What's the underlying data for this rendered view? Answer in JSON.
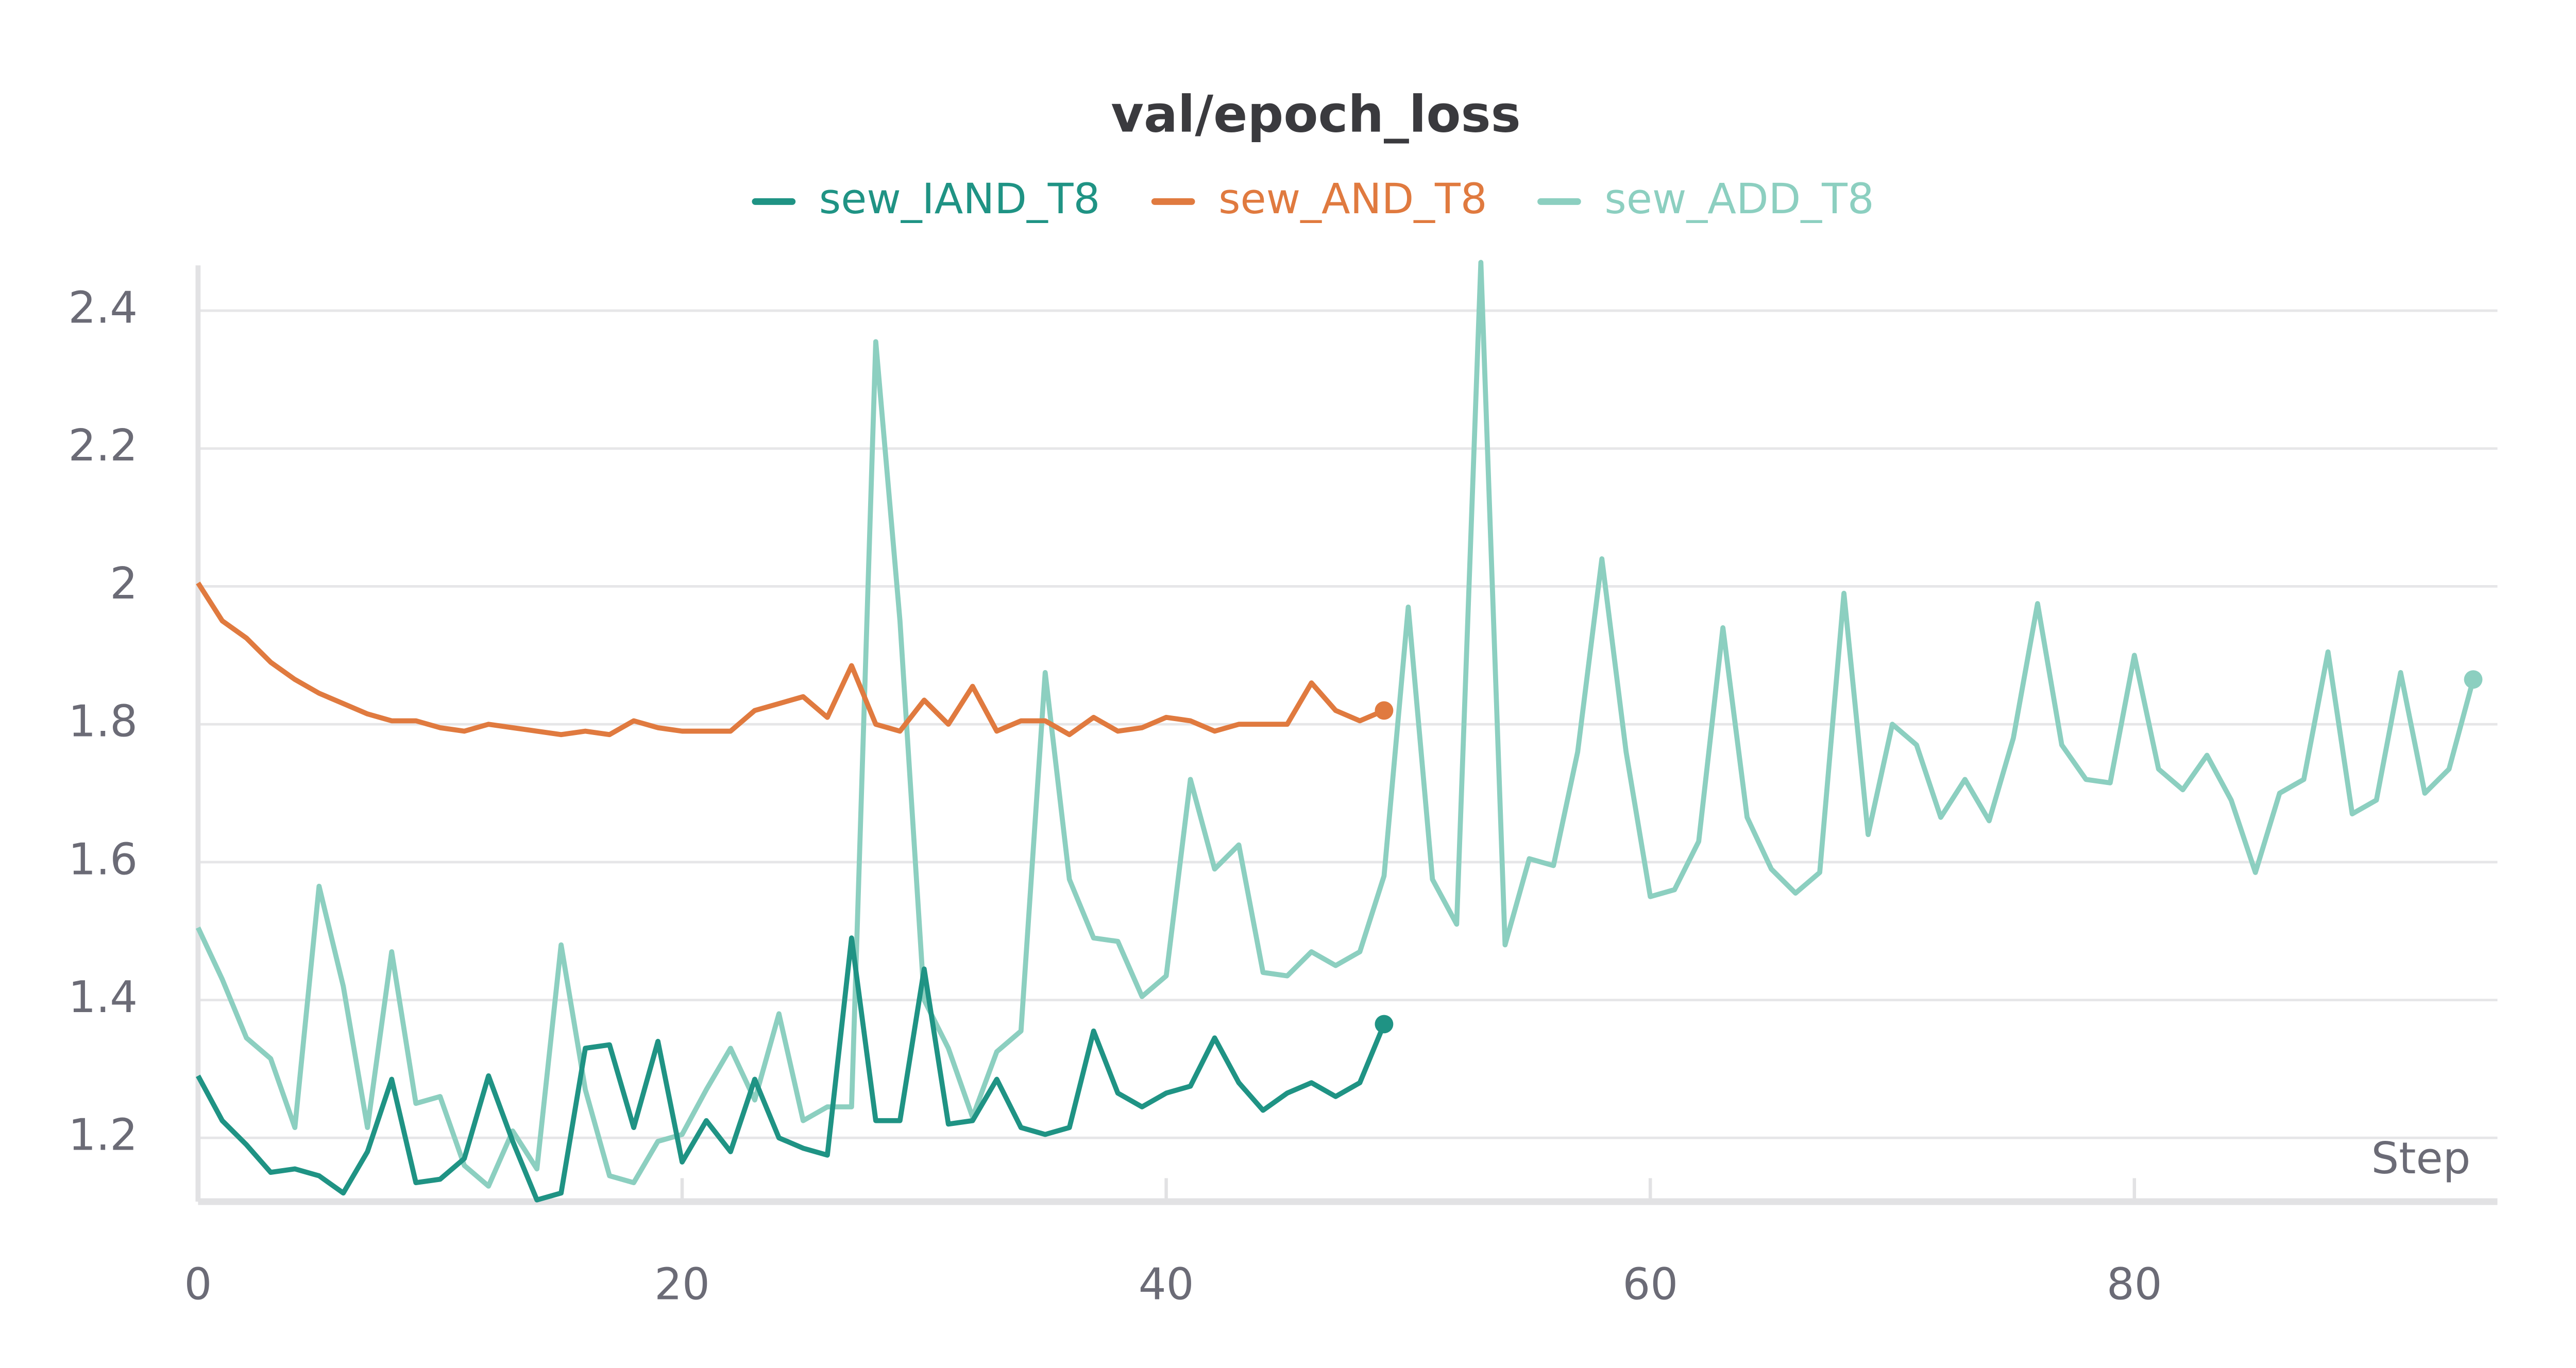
{
  "chart_data": {
    "type": "line",
    "title": "val/epoch_loss",
    "x_label": "Step",
    "xlim": [
      0,
      95
    ],
    "xticks": [
      0,
      20,
      40,
      60,
      80
    ],
    "ylim": [
      1.1075,
      2.4657
    ],
    "yticks": [
      1.2,
      1.4,
      1.6,
      1.8,
      2,
      2.2,
      2.4
    ],
    "grid": true,
    "legend": "top",
    "series": [
      {
        "name": "sew_IAND_T8",
        "color": "#1f9384",
        "x": [
          0,
          1,
          2,
          3,
          4,
          5,
          6,
          7,
          8,
          9,
          10,
          11,
          12,
          13,
          14,
          15,
          16,
          17,
          18,
          19,
          20,
          21,
          22,
          23,
          24,
          25,
          26,
          27,
          28,
          29,
          30,
          31,
          32,
          33,
          34,
          35,
          36,
          37,
          38,
          39,
          40,
          41,
          42,
          43,
          44,
          45,
          46,
          47,
          48,
          49
        ],
        "values": [
          1.29,
          1.225,
          1.19,
          1.15,
          1.155,
          1.145,
          1.12,
          1.18,
          1.285,
          1.135,
          1.14,
          1.17,
          1.29,
          1.195,
          1.11,
          1.12,
          1.33,
          1.335,
          1.215,
          1.34,
          1.165,
          1.225,
          1.18,
          1.285,
          1.2,
          1.185,
          1.175,
          1.49,
          1.225,
          1.225,
          1.445,
          1.22,
          1.225,
          1.285,
          1.215,
          1.205,
          1.215,
          1.355,
          1.265,
          1.245,
          1.265,
          1.275,
          1.345,
          1.28,
          1.24,
          1.265,
          1.28,
          1.26,
          1.28,
          1.365
        ]
      },
      {
        "name": "sew_AND_T8",
        "color": "#e07a3f",
        "x": [
          0,
          1,
          2,
          3,
          4,
          5,
          6,
          7,
          8,
          9,
          10,
          11,
          12,
          13,
          14,
          15,
          16,
          17,
          18,
          19,
          20,
          21,
          22,
          23,
          24,
          25,
          26,
          27,
          28,
          29,
          30,
          31,
          32,
          33,
          34,
          35,
          36,
          37,
          38,
          39,
          40,
          41,
          42,
          43,
          44,
          45,
          46,
          47,
          48,
          49
        ],
        "values": [
          2.005,
          1.95,
          1.925,
          1.89,
          1.865,
          1.845,
          1.83,
          1.815,
          1.805,
          1.805,
          1.795,
          1.79,
          1.8,
          1.795,
          1.79,
          1.785,
          1.79,
          1.785,
          1.805,
          1.795,
          1.79,
          1.79,
          1.79,
          1.82,
          1.83,
          1.84,
          1.81,
          1.885,
          1.8,
          1.79,
          1.835,
          1.8,
          1.855,
          1.79,
          1.805,
          1.805,
          1.785,
          1.81,
          1.79,
          1.795,
          1.81,
          1.805,
          1.79,
          1.8,
          1.8,
          1.8,
          1.86,
          1.82,
          1.805,
          1.82
        ]
      },
      {
        "name": "sew_ADD_T8",
        "color": "#8ccfc0",
        "x": [
          0,
          1,
          2,
          3,
          4,
          5,
          6,
          7,
          8,
          9,
          10,
          11,
          12,
          13,
          14,
          15,
          16,
          17,
          18,
          19,
          20,
          21,
          22,
          23,
          24,
          25,
          26,
          27,
          28,
          29,
          30,
          31,
          32,
          33,
          34,
          35,
          36,
          37,
          38,
          39,
          40,
          41,
          42,
          43,
          44,
          45,
          46,
          47,
          48,
          49,
          50,
          51,
          52,
          53,
          54,
          55,
          56,
          57,
          58,
          59,
          60,
          61,
          62,
          63,
          64,
          65,
          66,
          67,
          68,
          69,
          70,
          71,
          72,
          73,
          74,
          75,
          76,
          77,
          78,
          79,
          80,
          81,
          82,
          83,
          84,
          85,
          86,
          87,
          88,
          89,
          90,
          91,
          92,
          93,
          94
        ],
        "values": [
          1.505,
          1.43,
          1.345,
          1.315,
          1.215,
          1.565,
          1.42,
          1.215,
          1.47,
          1.25,
          1.26,
          1.16,
          1.13,
          1.21,
          1.155,
          1.48,
          1.27,
          1.145,
          1.135,
          1.195,
          1.205,
          1.27,
          1.33,
          1.255,
          1.38,
          1.225,
          1.245,
          1.245,
          2.355,
          1.95,
          1.4,
          1.33,
          1.23,
          1.325,
          1.355,
          1.875,
          1.575,
          1.49,
          1.485,
          1.405,
          1.435,
          1.72,
          1.59,
          1.625,
          1.44,
          1.435,
          1.47,
          1.45,
          1.47,
          1.58,
          1.97,
          1.575,
          1.51,
          2.47,
          1.48,
          1.605,
          1.595,
          1.76,
          2.04,
          1.76,
          1.55,
          1.56,
          1.63,
          1.94,
          1.665,
          1.59,
          1.555,
          1.585,
          1.99,
          1.64,
          1.8,
          1.77,
          1.665,
          1.72,
          1.66,
          1.78,
          1.975,
          1.77,
          1.72,
          1.715,
          1.9,
          1.735,
          1.705,
          1.755,
          1.69,
          1.585,
          1.7,
          1.72,
          1.905,
          1.67,
          1.69,
          1.875,
          1.7,
          1.735,
          1.865
        ]
      }
    ]
  }
}
